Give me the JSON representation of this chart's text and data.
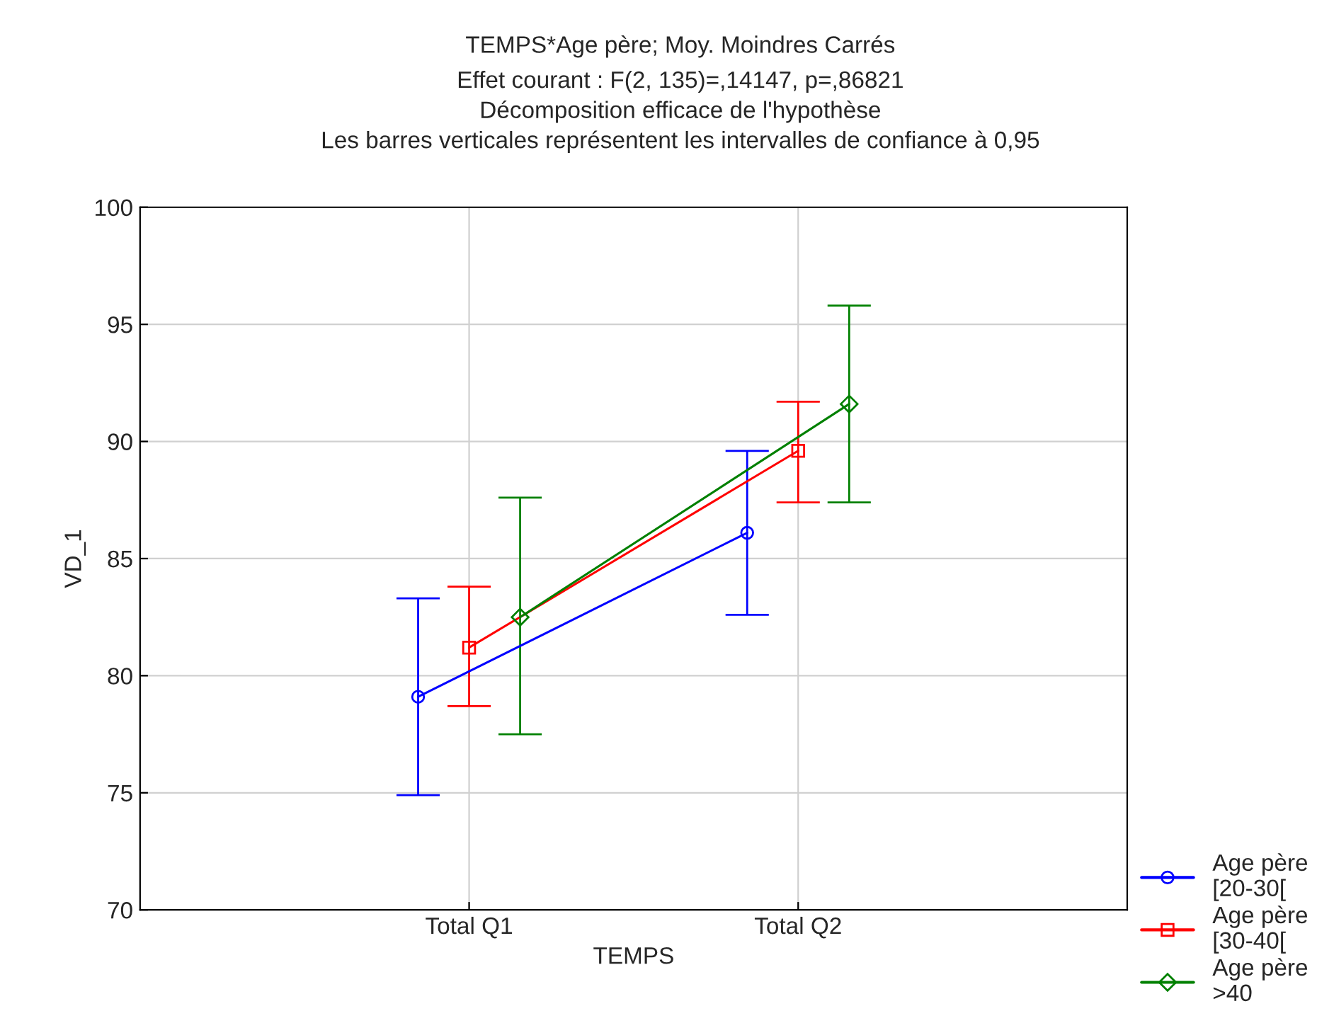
{
  "chart_data": {
    "type": "line",
    "title": "TEMPS*Age père; Moy. Moindres Carrés",
    "subtitle": "Effet courant : F(2, 135)=,14147, p=,86821\nDécomposition efficace de l'hypothèse\nLes barres verticales représentent les intervalles de confiance à 0,95",
    "xlabel": "TEMPS",
    "ylabel": "VD_1",
    "categories": [
      "Total Q1",
      "Total Q2"
    ],
    "series": [
      {
        "name": "Age père\n[20-30[",
        "color": "#0000ff",
        "marker": "circle",
        "values": [
          79.1,
          86.1
        ],
        "errors": [
          [
            74.9,
            83.3
          ],
          [
            82.6,
            89.6
          ]
        ]
      },
      {
        "name": "Age père\n[30-40[",
        "color": "#ff0000",
        "marker": "square",
        "values": [
          81.2,
          89.6
        ],
        "errors": [
          [
            78.7,
            83.8
          ],
          [
            87.4,
            91.7
          ]
        ]
      },
      {
        "name": "Age père\n>40",
        "color": "#008000",
        "marker": "diamond",
        "values": [
          82.5,
          91.6
        ],
        "errors": [
          [
            77.5,
            87.6
          ],
          [
            87.4,
            95.8
          ]
        ]
      }
    ],
    "ylim": [
      70,
      100
    ],
    "yticks": [
      70,
      75,
      80,
      85,
      90,
      95,
      100
    ],
    "grid": true,
    "legend": "right"
  }
}
